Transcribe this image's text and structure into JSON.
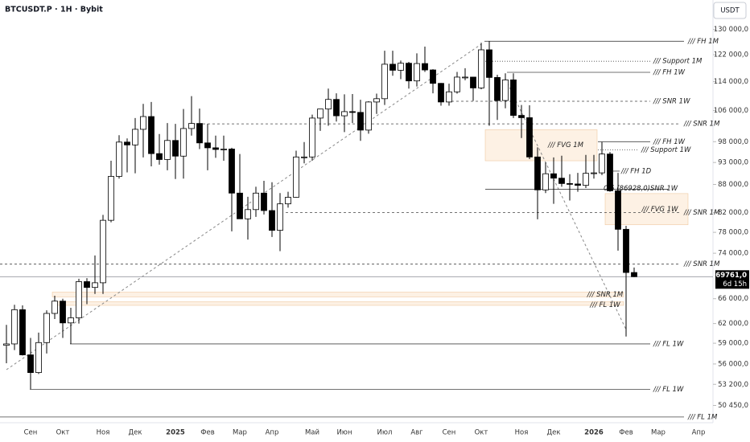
{
  "chart_data": {
    "type": "candlestick",
    "title": "BTCUSDT.P · 1H · Bybit",
    "currency": "USDT",
    "log_scale": true,
    "up_color": "#ffffff",
    "down_color": "#000000",
    "ylim": [
      48400,
      140000
    ],
    "yticks": [
      {
        "value": 130000,
        "label": "130 000,0"
      },
      {
        "value": 122000,
        "label": "122 000,0"
      },
      {
        "value": 114000,
        "label": "114 000,0"
      },
      {
        "value": 106000,
        "label": "106 000,0"
      },
      {
        "value": 98000,
        "label": "98 000,0"
      },
      {
        "value": 93000,
        "label": "93 000,0"
      },
      {
        "value": 88000,
        "label": "88 000,0"
      },
      {
        "value": 82000,
        "label": "82 000,0"
      },
      {
        "value": 78000,
        "label": "78 000,0"
      },
      {
        "value": 74000,
        "label": "74 000,0"
      },
      {
        "value": 66000,
        "label": "66 000,0"
      },
      {
        "value": 62000,
        "label": "62 000,0"
      },
      {
        "value": 59000,
        "label": "59 000,0"
      },
      {
        "value": 56000,
        "label": "56 000,0"
      },
      {
        "value": 53200,
        "label": "53 200,0"
      },
      {
        "value": 50450,
        "label": "50 450,0"
      }
    ],
    "categories": [
      null,
      null,
      null,
      "Сен",
      null,
      null,
      null,
      "Окт",
      null,
      null,
      null,
      null,
      "Ноя",
      null,
      null,
      null,
      "Дек",
      null,
      null,
      null,
      null,
      "2025",
      null,
      null,
      null,
      "Фев",
      null,
      null,
      null,
      "Мар",
      null,
      null,
      null,
      "Апр",
      null,
      null,
      null,
      null,
      "Май",
      null,
      null,
      null,
      "Июн",
      null,
      null,
      null,
      null,
      "Июл",
      null,
      null,
      null,
      "Авг",
      null,
      null,
      null,
      "Сен",
      null,
      null,
      null,
      "Окт",
      null,
      null,
      null,
      null,
      "Ноя",
      null,
      null,
      null,
      "Дек",
      null,
      null,
      null,
      null,
      "2026",
      null,
      null,
      null,
      "Фев",
      null,
      null,
      null,
      "Мар",
      null,
      null,
      null,
      null,
      "Апр"
    ],
    "open": [
      58700,
      58900,
      64200,
      57300,
      54800,
      59100,
      63600,
      65600,
      62100,
      62900,
      68900,
      67900,
      68700,
      80400,
      89800,
      97900,
      97200,
      101100,
      104400,
      95100,
      93700,
      98300,
      94500,
      101300,
      102600,
      97700,
      96500,
      96100,
      96200,
      86100,
      80700,
      82600,
      86100,
      82400,
      78400,
      83800,
      85200,
      94300,
      94300,
      104000,
      106400,
      109000,
      104600,
      105700,
      105500,
      100900,
      108300,
      109200,
      119100,
      117300,
      119400,
      114200,
      119300,
      117400,
      113500,
      108300,
      111100,
      115300,
      115300,
      112200,
      123500,
      115200,
      108700,
      114500,
      104700,
      104100,
      94300,
      86800,
      90400,
      89400,
      88200,
      88100,
      87800,
      90500,
      90600,
      95000,
      86600,
      78600,
      70500,
      null,
      null,
      null,
      null,
      null,
      null,
      null,
      null
    ],
    "high": [
      61800,
      65000,
      64900,
      59800,
      60600,
      64100,
      66500,
      66000,
      64500,
      69400,
      69500,
      73600,
      81500,
      93400,
      99600,
      98800,
      104000,
      107800,
      108300,
      99900,
      102700,
      102500,
      106400,
      109900,
      106500,
      102500,
      99500,
      99500,
      96500,
      95000,
      85300,
      87500,
      88800,
      88500,
      86100,
      86400,
      95800,
      97900,
      104900,
      105800,
      112000,
      110700,
      110400,
      110500,
      108900,
      108500,
      110600,
      123200,
      123200,
      120200,
      119800,
      122400,
      124500,
      117600,
      113600,
      113400,
      116800,
      117900,
      115400,
      125700,
      126200,
      116000,
      116400,
      116400,
      107500,
      107400,
      96600,
      93000,
      94200,
      94600,
      90300,
      90600,
      94800,
      94800,
      97900,
      95500,
      90600,
      79300,
      71400,
      null,
      null,
      null,
      null,
      null,
      null,
      null,
      null
    ],
    "low": [
      56100,
      58000,
      57200,
      52550,
      54600,
      57500,
      62700,
      59800,
      58900,
      62000,
      65100,
      66800,
      66800,
      80000,
      89300,
      90700,
      90500,
      94200,
      92100,
      92500,
      91200,
      89200,
      89300,
      99500,
      96200,
      91200,
      94100,
      93400,
      78200,
      81500,
      76600,
      81100,
      81600,
      77100,
      74400,
      83000,
      85100,
      92800,
      93400,
      100700,
      102000,
      103100,
      100400,
      102700,
      98200,
      100000,
      105100,
      107500,
      115700,
      114700,
      112000,
      112600,
      116800,
      110700,
      107300,
      107300,
      110600,
      114400,
      108600,
      111800,
      102000,
      103500,
      106600,
      104000,
      98900,
      93800,
      80600,
      86100,
      83800,
      87500,
      84500,
      86400,
      87200,
      89300,
      90100,
      86400,
      74500,
      60000,
      69700,
      null,
      null,
      null,
      null,
      null,
      null,
      null,
      null
    ],
    "close": [
      58900,
      64200,
      57300,
      54800,
      59100,
      63600,
      65600,
      62100,
      62900,
      68900,
      67900,
      68700,
      80400,
      89800,
      97900,
      97200,
      101100,
      104400,
      95100,
      93700,
      98300,
      94500,
      101300,
      102600,
      97700,
      96500,
      96100,
      96200,
      86100,
      80700,
      82600,
      86100,
      82400,
      78400,
      83800,
      85200,
      94300,
      94300,
      104000,
      106400,
      109000,
      104600,
      105700,
      105500,
      100900,
      108300,
      109200,
      119100,
      117300,
      119400,
      114200,
      119300,
      117400,
      113500,
      108300,
      111100,
      115300,
      115300,
      112200,
      123500,
      115200,
      108700,
      114500,
      104700,
      104100,
      94300,
      86800,
      90400,
      89400,
      88200,
      88100,
      87800,
      90500,
      90600,
      95000,
      86600,
      78600,
      70500,
      69761,
      null,
      null,
      null,
      null,
      null,
      null,
      null,
      null
    ],
    "last_price": {
      "value": 69761,
      "label": "69761,0",
      "countdown": "6d 15h"
    },
    "levels": [
      {
        "label": "/// FH 1M",
        "value": 126200,
        "style": "solid"
      },
      {
        "label": "/// Support 1M",
        "value": 120000,
        "style": "dotted"
      },
      {
        "label": "/// FH 1W",
        "value": 116700,
        "style": "solid"
      },
      {
        "label": "/// SNR 1W",
        "value": 108500,
        "style": "dashed"
      },
      {
        "label": "/// SNR 1M",
        "value": 102500,
        "style": "dashed"
      },
      {
        "label": "/// FH 1W",
        "value": 98000,
        "style": "solid"
      },
      {
        "label": "/// Support 1W",
        "value": 96000,
        "style": "dotted"
      },
      {
        "label": "/// FH 1D",
        "value": 91000,
        "style": "solid"
      },
      {
        "label": "0,5 (86928,0)SNR 1W",
        "value": 86928,
        "style": "solid"
      },
      {
        "label": "/// SNR 1M",
        "value": 82000,
        "style": "dashed"
      },
      {
        "label": "/// SNR 1M",
        "value": 72000,
        "style": "dashed"
      },
      {
        "label": "/// FL 1W",
        "value": 58900,
        "style": "solid"
      },
      {
        "label": "/// FL 1W",
        "value": 52550,
        "style": "solid"
      },
      {
        "label": "/// FL 1M",
        "value": 49000,
        "style": "solid"
      }
    ],
    "zones": [
      {
        "label": "/// FVG 1M",
        "low": 93400,
        "high": 101000
      },
      {
        "label": "/// FVG 1W",
        "low": 79500,
        "high": 86000
      },
      {
        "label": "/// SNR 1M",
        "low": 66300,
        "high": 67100
      },
      {
        "label": "/// FL 1W",
        "low": 64900,
        "high": 65500
      }
    ]
  }
}
